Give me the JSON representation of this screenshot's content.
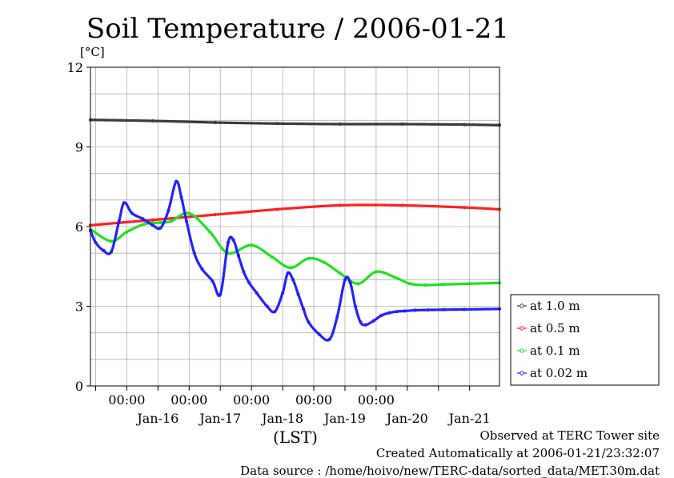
{
  "chart_data": {
    "type": "line",
    "title": "Soil Temperature / 2006-01-21",
    "ylabel": "[°C]",
    "xlabel": "(LST)",
    "ylim": [
      0,
      12
    ],
    "yticks": [
      0,
      3,
      6,
      9,
      12
    ],
    "xlim": [
      "2006-01-15T10:00",
      "2006-01-21T23:30"
    ],
    "time_ticks": [
      "00:00",
      "00:00",
      "00:00",
      "00:00",
      "00:00"
    ],
    "time_tick_positions": [
      "2006-01-16T00:00",
      "2006-01-17T00:00",
      "2006-01-18T00:00",
      "2006-01-19T00:00",
      "2006-01-20T00:00"
    ],
    "date_labels": [
      "Jan-16",
      "Jan-17",
      "Jan-18",
      "Jan-19",
      "Jan-20",
      "Jan-21"
    ],
    "date_label_positions": [
      "2006-01-16T12:00",
      "2006-01-17T12:00",
      "2006-01-18T12:00",
      "2006-01-19T12:00",
      "2006-01-20T12:00",
      "2006-01-21T12:00"
    ],
    "grid": true,
    "legend_position": "right",
    "series": [
      {
        "name": "at 1.0 m",
        "color": "#3a3a3a",
        "x": [
          "2006-01-15T10:00",
          "2006-01-16T10:00",
          "2006-01-17T10:00",
          "2006-01-18T10:00",
          "2006-01-19T10:00",
          "2006-01-20T10:00",
          "2006-01-21T10:00",
          "2006-01-21T23:30"
        ],
        "y": [
          10.02,
          9.98,
          9.92,
          9.88,
          9.86,
          9.86,
          9.84,
          9.82
        ]
      },
      {
        "name": "at 0.5 m",
        "color": "#ff2020",
        "x": [
          "2006-01-15T10:00",
          "2006-01-16T10:00",
          "2006-01-17T10:00",
          "2006-01-18T10:00",
          "2006-01-19T10:00",
          "2006-01-20T10:00",
          "2006-01-21T10:00",
          "2006-01-21T23:30"
        ],
        "y": [
          6.05,
          6.25,
          6.45,
          6.65,
          6.8,
          6.8,
          6.72,
          6.65
        ]
      },
      {
        "name": "at 0.1 m",
        "color": "#20e020",
        "x": [
          "2006-01-15T10:00",
          "2006-01-15T18:00",
          "2006-01-16T00:00",
          "2006-01-16T07:00",
          "2006-01-16T13:00",
          "2006-01-16T17:00",
          "2006-01-17T00:00",
          "2006-01-17T08:00",
          "2006-01-17T15:00",
          "2006-01-18T00:00",
          "2006-01-18T08:00",
          "2006-01-18T15:00",
          "2006-01-18T22:00",
          "2006-01-19T04:00",
          "2006-01-19T10:00",
          "2006-01-19T17:00",
          "2006-01-20T00:00",
          "2006-01-20T07:00",
          "2006-01-20T13:00",
          "2006-01-20T19:00",
          "2006-01-21T02:00",
          "2006-01-21T12:00",
          "2006-01-21T23:30"
        ],
        "y": [
          5.9,
          5.45,
          5.8,
          6.1,
          6.15,
          6.2,
          6.5,
          5.8,
          5.0,
          5.3,
          4.85,
          4.45,
          4.8,
          4.65,
          4.25,
          3.85,
          4.3,
          4.1,
          3.85,
          3.8,
          3.82,
          3.85,
          3.88
        ]
      },
      {
        "name": "at 0.02 m",
        "color": "#2020ff",
        "x": [
          "2006-01-15T10:00",
          "2006-01-15T12:00",
          "2006-01-15T15:00",
          "2006-01-15T18:00",
          "2006-01-15T21:00",
          "2006-01-15T23:00",
          "2006-01-16T02:00",
          "2006-01-16T06:00",
          "2006-01-16T10:00",
          "2006-01-16T13:00",
          "2006-01-16T16:00",
          "2006-01-16T19:00",
          "2006-01-16T21:00",
          "2006-01-16T23:00",
          "2006-01-17T02:00",
          "2006-01-17T05:00",
          "2006-01-17T09:00",
          "2006-01-17T12:00",
          "2006-01-17T15:00",
          "2006-01-17T17:00",
          "2006-01-17T19:00",
          "2006-01-17T21:00",
          "2006-01-17T23:00",
          "2006-01-18T02:00",
          "2006-01-18T06:00",
          "2006-01-18T09:00",
          "2006-01-18T12:00",
          "2006-01-18T14:00",
          "2006-01-18T16:00",
          "2006-01-18T18:00",
          "2006-01-18T20:00",
          "2006-01-18T22:00",
          "2006-01-19T02:00",
          "2006-01-19T06:00",
          "2006-01-19T09:00",
          "2006-01-19T12:00",
          "2006-01-19T14:00",
          "2006-01-19T16:00",
          "2006-01-19T18:00",
          "2006-01-19T20:00",
          "2006-01-19T23:00",
          "2006-01-20T02:00",
          "2006-01-20T05:00",
          "2006-01-20T08:00",
          "2006-01-20T11:00",
          "2006-01-20T15:00",
          "2006-01-20T20:00",
          "2006-01-21T02:00",
          "2006-01-21T10:00",
          "2006-01-21T23:30"
        ],
        "y": [
          5.85,
          5.4,
          5.1,
          5.05,
          6.2,
          6.9,
          6.5,
          6.3,
          6.05,
          5.95,
          6.6,
          7.7,
          7.1,
          6.2,
          5.0,
          4.4,
          3.95,
          3.45,
          5.4,
          5.5,
          4.9,
          4.3,
          3.9,
          3.5,
          3.0,
          2.8,
          3.5,
          4.25,
          4.0,
          3.45,
          2.9,
          2.4,
          1.95,
          1.75,
          2.6,
          4.0,
          3.9,
          3.0,
          2.4,
          2.3,
          2.45,
          2.65,
          2.75,
          2.8,
          2.82,
          2.85,
          2.86,
          2.87,
          2.88,
          2.9
        ]
      }
    ]
  },
  "footer": {
    "line1": "Observed at TERC Tower site",
    "line2": "Created Automatically at 2006-01-21/23:32:07",
    "line3": "Data source : /home/hoivo/new/TERC-data/sorted_data/MET.30m.dat"
  }
}
